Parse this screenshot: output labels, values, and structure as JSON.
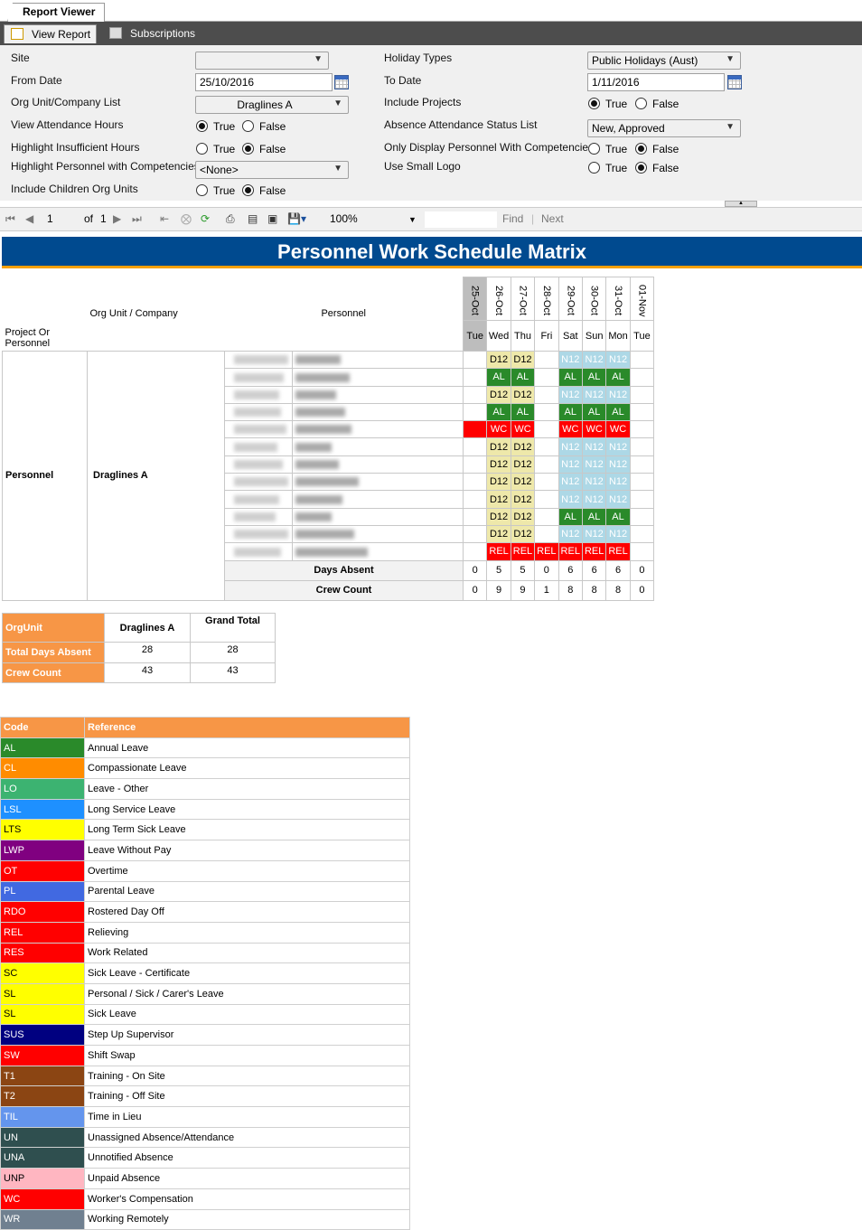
{
  "tabs": {
    "report_viewer": "Report Viewer"
  },
  "toolstrip": {
    "view_report": "View Report",
    "subscriptions": "Subscriptions"
  },
  "params": {
    "site": {
      "label": "Site",
      "value": ""
    },
    "from_date": {
      "label": "From Date",
      "value": "25/10/2016"
    },
    "org_unit": {
      "label": "Org Unit/Company List",
      "value": "Draglines A"
    },
    "view_attendance": {
      "label": "View Attendance Hours",
      "value": "True"
    },
    "highlight_insufficient": {
      "label": "Highlight Insufficient Hours",
      "value": "False"
    },
    "highlight_competencies": {
      "label": "Highlight Personnel with Competencies",
      "value": "<None>"
    },
    "include_children": {
      "label": "Include Children Org Units",
      "value": "False"
    },
    "holiday_types": {
      "label": "Holiday Types",
      "value": "Public Holidays (Aust)"
    },
    "to_date": {
      "label": "To Date",
      "value": "1/11/2016"
    },
    "include_projects": {
      "label": "Include Projects",
      "value": "True"
    },
    "absence_status": {
      "label": "Absence Attendance Status List",
      "value": "New, Approved"
    },
    "only_competencies": {
      "label": "Only Display Personnel With Competencies",
      "value": "False"
    },
    "small_logo": {
      "label": "Use Small Logo",
      "value": "False"
    },
    "true_label": "True",
    "false_label": "False"
  },
  "nav": {
    "page": "1",
    "of": "of",
    "total": "1",
    "zoom": "100%",
    "find": "Find",
    "next": "Next"
  },
  "report": {
    "title": "Personnel Work Schedule Matrix",
    "col_project": "Project Or Personnel",
    "col_org": "Org Unit / Company",
    "col_personnel": "Personnel",
    "project": "Personnel",
    "org": "Draglines A",
    "dates": [
      "25-Oct",
      "26-Oct",
      "27-Oct",
      "28-Oct",
      "29-Oct",
      "30-Oct",
      "31-Oct",
      "01-Nov"
    ],
    "days": [
      "Tue",
      "Wed",
      "Thu",
      "Fri",
      "Sat",
      "Sun",
      "Mon",
      "Tue"
    ],
    "rows": [
      [
        "",
        "D12",
        "D12",
        "",
        "N12",
        "N12",
        "N12",
        ""
      ],
      [
        "",
        "AL",
        "AL",
        "",
        "AL",
        "AL",
        "AL",
        ""
      ],
      [
        "",
        "D12",
        "D12",
        "",
        "N12",
        "N12",
        "N12",
        ""
      ],
      [
        "",
        "AL",
        "AL",
        "",
        "AL",
        "AL",
        "AL",
        ""
      ],
      [
        "",
        "WC",
        "WC",
        "",
        "WC",
        "WC",
        "WC",
        ""
      ],
      [
        "",
        "D12",
        "D12",
        "",
        "N12",
        "N12",
        "N12",
        ""
      ],
      [
        "",
        "D12",
        "D12",
        "",
        "N12",
        "N12",
        "N12",
        ""
      ],
      [
        "",
        "D12",
        "D12",
        "",
        "N12",
        "N12",
        "N12",
        ""
      ],
      [
        "",
        "D12",
        "D12",
        "",
        "N12",
        "N12",
        "N12",
        ""
      ],
      [
        "",
        "D12",
        "D12",
        "",
        "AL",
        "AL",
        "AL",
        ""
      ],
      [
        "",
        "D12",
        "D12",
        "",
        "N12",
        "N12",
        "N12",
        ""
      ],
      [
        "",
        "REL",
        "REL",
        "REL",
        "REL",
        "REL",
        "REL",
        ""
      ]
    ],
    "days_absent_label": "Days Absent",
    "days_absent": [
      0,
      5,
      5,
      0,
      6,
      6,
      6,
      0
    ],
    "crew_count_label": "Crew Count",
    "crew_count": [
      0,
      9,
      9,
      1,
      8,
      8,
      8,
      0
    ]
  },
  "summary": {
    "orgunit": "OrgUnit",
    "col1": "Draglines A",
    "col2": "Grand Total",
    "total_days_absent": "Total Days Absent",
    "tda1": "28",
    "tda2": "28",
    "crew_count": "Crew Count",
    "cc1": "43",
    "cc2": "43"
  },
  "legend": {
    "code": "Code",
    "reference": "Reference",
    "items": [
      {
        "code": "AL",
        "ref": "Annual Leave",
        "color": "#2a8a2a",
        "fg": "#fff"
      },
      {
        "code": "CL",
        "ref": "Compassionate Leave",
        "color": "#ff8c00",
        "fg": "#fff"
      },
      {
        "code": "LO",
        "ref": "Leave - Other",
        "color": "#3cb371",
        "fg": "#fff"
      },
      {
        "code": "LSL",
        "ref": "Long Service Leave",
        "color": "#1e90ff",
        "fg": "#fff"
      },
      {
        "code": "LTS",
        "ref": "Long Term Sick Leave",
        "color": "#ffff00",
        "fg": "#000"
      },
      {
        "code": "LWP",
        "ref": "Leave Without Pay",
        "color": "#800080",
        "fg": "#fff"
      },
      {
        "code": "OT",
        "ref": "Overtime",
        "color": "#ff0000",
        "fg": "#fff"
      },
      {
        "code": "PL",
        "ref": "Parental Leave",
        "color": "#4169e1",
        "fg": "#fff"
      },
      {
        "code": "RDO",
        "ref": "Rostered Day Off",
        "color": "#ff0000",
        "fg": "#fff"
      },
      {
        "code": "REL",
        "ref": "Relieving",
        "color": "#ff0000",
        "fg": "#fff"
      },
      {
        "code": "RES",
        "ref": "Work Related",
        "color": "#ff0000",
        "fg": "#fff"
      },
      {
        "code": "SC",
        "ref": "Sick Leave - Certificate",
        "color": "#ffff00",
        "fg": "#000"
      },
      {
        "code": "SL",
        "ref": "Personal / Sick / Carer's Leave",
        "color": "#ffff00",
        "fg": "#000"
      },
      {
        "code": "SL",
        "ref": "Sick Leave",
        "color": "#ffff00",
        "fg": "#000"
      },
      {
        "code": "SUS",
        "ref": "Step Up Supervisor",
        "color": "#000080",
        "fg": "#fff"
      },
      {
        "code": "SW",
        "ref": "Shift Swap",
        "color": "#ff0000",
        "fg": "#fff"
      },
      {
        "code": "T1",
        "ref": "Training - On Site",
        "color": "#8b4513",
        "fg": "#fff"
      },
      {
        "code": "T2",
        "ref": "Training - Off Site",
        "color": "#8b4513",
        "fg": "#fff"
      },
      {
        "code": "TIL",
        "ref": "Time in Lieu",
        "color": "#6495ed",
        "fg": "#fff"
      },
      {
        "code": "UN",
        "ref": "Unassigned Absence/Attendance",
        "color": "#2f4f4f",
        "fg": "#fff"
      },
      {
        "code": "UNA",
        "ref": "Unnotified Absence",
        "color": "#2f4f4f",
        "fg": "#fff"
      },
      {
        "code": "UNP",
        "ref": "Unpaid Absence",
        "color": "#ffb6c1",
        "fg": "#000"
      },
      {
        "code": "WC",
        "ref": "Worker's Compensation",
        "color": "#ff0000",
        "fg": "#fff"
      },
      {
        "code": "WR",
        "ref": "Working Remotely",
        "color": "#708090",
        "fg": "#fff"
      }
    ]
  }
}
